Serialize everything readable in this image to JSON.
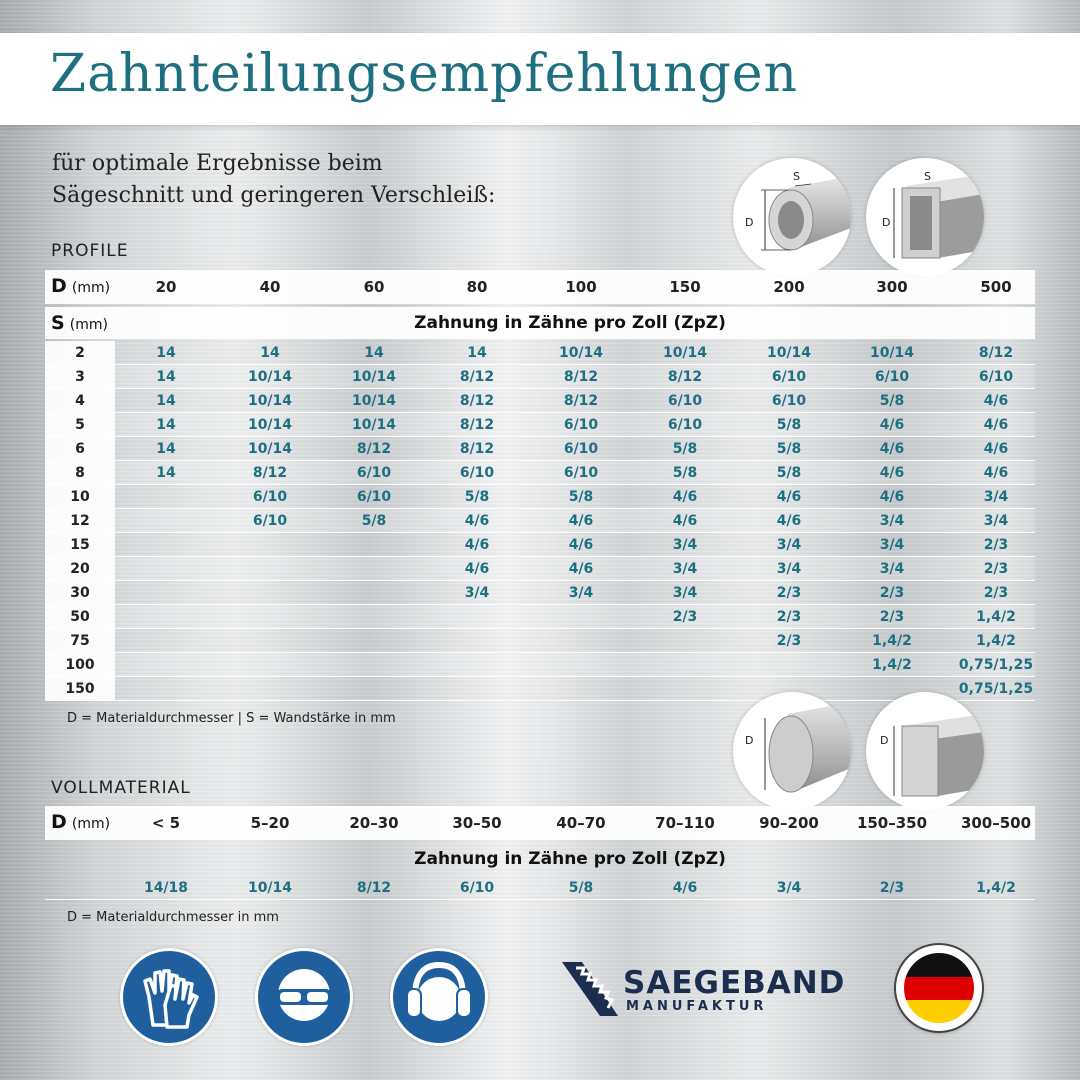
{
  "title": "Zahnteilungsempfehlungen",
  "subtitle": [
    "für optimale Ergebnisse beim",
    "Sägeschnitt und geringeren Verschleiß:"
  ],
  "profile": {
    "section_label": "PROFILE",
    "d_label": "D",
    "d_unit": "(mm)",
    "s_label": "S",
    "s_unit": "(mm)",
    "d_values": [
      "20",
      "40",
      "60",
      "80",
      "100",
      "150",
      "200",
      "300",
      "500"
    ],
    "zahnung_header": "Zahnung in Zähne pro Zoll (ZpZ)",
    "rows": [
      {
        "s": "2",
        "cells": [
          "14",
          "14",
          "14",
          "14",
          "10/14",
          "10/14",
          "10/14",
          "10/14",
          "8/12"
        ]
      },
      {
        "s": "3",
        "cells": [
          "14",
          "10/14",
          "10/14",
          "8/12",
          "8/12",
          "8/12",
          "6/10",
          "6/10",
          "6/10"
        ]
      },
      {
        "s": "4",
        "cells": [
          "14",
          "10/14",
          "10/14",
          "8/12",
          "8/12",
          "6/10",
          "6/10",
          "5/8",
          "4/6"
        ]
      },
      {
        "s": "5",
        "cells": [
          "14",
          "10/14",
          "10/14",
          "8/12",
          "6/10",
          "6/10",
          "5/8",
          "4/6",
          "4/6"
        ]
      },
      {
        "s": "6",
        "cells": [
          "14",
          "10/14",
          "8/12",
          "8/12",
          "6/10",
          "5/8",
          "5/8",
          "4/6",
          "4/6"
        ]
      },
      {
        "s": "8",
        "cells": [
          "14",
          "8/12",
          "6/10",
          "6/10",
          "6/10",
          "5/8",
          "5/8",
          "4/6",
          "4/6"
        ]
      },
      {
        "s": "10",
        "cells": [
          "",
          "6/10",
          "6/10",
          "5/8",
          "5/8",
          "4/6",
          "4/6",
          "4/6",
          "3/4"
        ]
      },
      {
        "s": "12",
        "cells": [
          "",
          "6/10",
          "5/8",
          "4/6",
          "4/6",
          "4/6",
          "4/6",
          "3/4",
          "3/4"
        ]
      },
      {
        "s": "15",
        "cells": [
          "",
          "",
          "",
          "4/6",
          "4/6",
          "3/4",
          "3/4",
          "3/4",
          "2/3"
        ]
      },
      {
        "s": "20",
        "cells": [
          "",
          "",
          "",
          "4/6",
          "4/6",
          "3/4",
          "3/4",
          "3/4",
          "2/3"
        ]
      },
      {
        "s": "30",
        "cells": [
          "",
          "",
          "",
          "3/4",
          "3/4",
          "3/4",
          "2/3",
          "2/3",
          "2/3"
        ]
      },
      {
        "s": "50",
        "cells": [
          "",
          "",
          "",
          "",
          "",
          "2/3",
          "2/3",
          "2/3",
          "1,4/2"
        ]
      },
      {
        "s": "75",
        "cells": [
          "",
          "",
          "",
          "",
          "",
          "",
          "2/3",
          "1,4/2",
          "1,4/2"
        ]
      },
      {
        "s": "100",
        "cells": [
          "",
          "",
          "",
          "",
          "",
          "",
          "",
          "1,4/2",
          "0,75/1,25"
        ]
      },
      {
        "s": "150",
        "cells": [
          "",
          "",
          "",
          "",
          "",
          "",
          "",
          "",
          "0,75/1,25"
        ]
      }
    ],
    "note": "D = Materialdurchmesser | S = Wandstärke in mm",
    "diagram_labels": {
      "d": "D",
      "s": "S"
    }
  },
  "vollmaterial": {
    "section_label": "VOLLMATERIAL",
    "d_label": "D",
    "d_unit": "(mm)",
    "d_values": [
      "< 5",
      "5–20",
      "20–30",
      "30–50",
      "40–70",
      "70–110",
      "90–200",
      "150–350",
      "300–500"
    ],
    "zahnung_header": "Zahnung in Zähne pro Zoll (ZpZ)",
    "values": [
      "14/18",
      "10/14",
      "8/12",
      "6/10",
      "5/8",
      "4/6",
      "3/4",
      "2/3",
      "1,4/2"
    ],
    "note": "D = Materialdurchmesser in mm",
    "diagram_labels": {
      "d": "D"
    }
  },
  "footer": {
    "brand_name": "SAEGEBAND",
    "brand_sub": "MANUFAKTUR",
    "safety_icons": [
      "gloves-icon",
      "goggles-icon",
      "ear-protection-icon"
    ],
    "flag": "german-flag-icon"
  },
  "colors": {
    "accent": "#1e6f80",
    "sign_blue": "#1f5f9d",
    "brand_navy": "#1c2e4f"
  }
}
